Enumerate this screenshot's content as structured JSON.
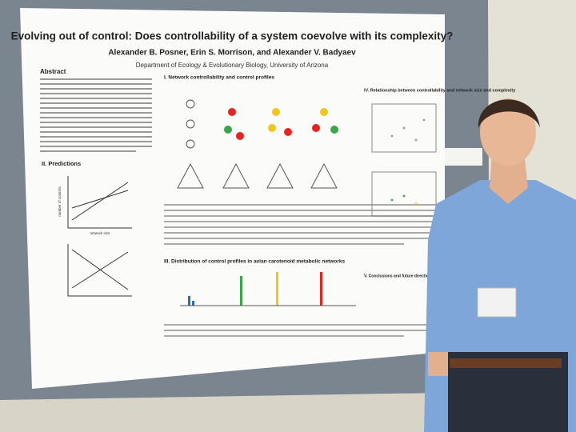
{
  "poster": {
    "title": "Evolving out of control: Does controllability of a system coevolve with its complexity?",
    "authors": "Alexander B. Posner, Erin S. Morrison, and Alexander V. Badyaev",
    "affiliation": "Department of Ecology & Evolutionary Biology, University of Arizona",
    "sections": {
      "abstract": "Abstract",
      "predictions": "II. Predictions",
      "network": "I. Network controllability and control profiles",
      "distribution": "III. Distribution of control profiles in avian carotenoid metabolic networks",
      "relationship": "IV. Relationship between controllability and network size and complexity",
      "conclusions": "V. Conclusions and future directions"
    },
    "axis_labels": {
      "y": "number of controls",
      "x": "network size"
    }
  }
}
